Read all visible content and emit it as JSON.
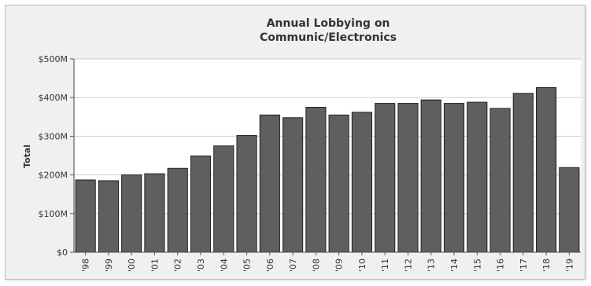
{
  "chart_data": {
    "type": "bar",
    "title_lines": [
      "Annual Lobbying on",
      "Communic/Electronics"
    ],
    "ylabel": "Total",
    "xlabel": "",
    "categories": [
      "'98",
      "'99",
      "'00",
      "'01",
      "'02",
      "'03",
      "'04",
      "'05",
      "'06",
      "'07",
      "'08",
      "'09",
      "'10",
      "'11",
      "'12",
      "'13",
      "'14",
      "'15",
      "'16",
      "'17",
      "'18",
      "'19"
    ],
    "values": [
      187,
      185,
      200,
      203,
      217,
      249,
      275,
      302,
      355,
      348,
      375,
      355,
      362,
      385,
      385,
      394,
      385,
      388,
      372,
      411,
      426,
      219
    ],
    "value_unit": "millions USD",
    "ylim": [
      0,
      500
    ],
    "yticks": [
      {
        "value": 0,
        "label": "$0"
      },
      {
        "value": 100,
        "label": "$100M"
      },
      {
        "value": 200,
        "label": "$200M"
      },
      {
        "value": 300,
        "label": "$300M"
      },
      {
        "value": 400,
        "label": "$400M"
      },
      {
        "value": 500,
        "label": "$500M"
      }
    ],
    "grid": true,
    "legend": "none",
    "colors": {
      "bar_fill": "#5f5f5f",
      "bar_stroke": "#222222",
      "plot_background": "#ffffff",
      "frame_background": "#f0f0f0",
      "grid": "#cfcfcf"
    }
  }
}
